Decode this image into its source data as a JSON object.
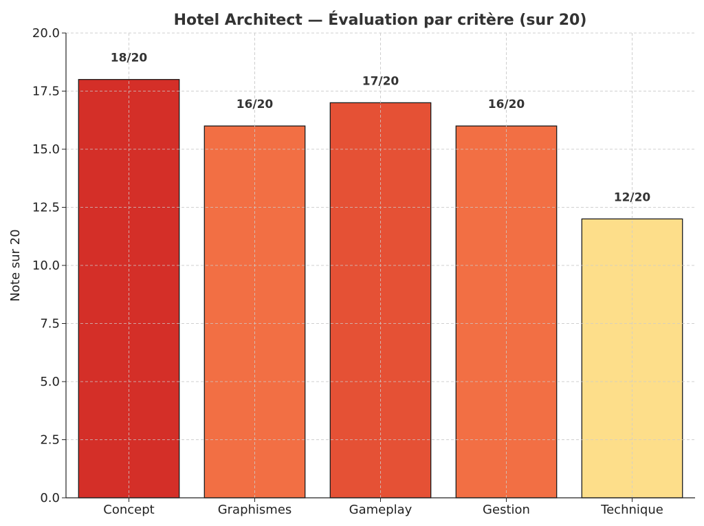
{
  "chart_data": {
    "type": "bar",
    "title": "Hotel Architect — Évaluation par critère (sur 20)",
    "xlabel": "",
    "ylabel": "Note sur 20",
    "categories": [
      "Concept",
      "Graphismes",
      "Gameplay",
      "Gestion",
      "Technique"
    ],
    "values": [
      18,
      16,
      17,
      16,
      12
    ],
    "data_labels": [
      "18/20",
      "16/20",
      "17/20",
      "16/20",
      "12/20"
    ],
    "colors": [
      "#d42f28",
      "#f26f44",
      "#e55135",
      "#f26f44",
      "#fdde8a"
    ],
    "ylim": [
      0,
      20
    ],
    "yticks": [
      0,
      2.5,
      5,
      7.5,
      10,
      12.5,
      15,
      17.5,
      20
    ],
    "ytick_labels": [
      "0.0",
      "2.5",
      "5.0",
      "7.5",
      "10.0",
      "12.5",
      "15.0",
      "17.5",
      "20.0"
    ],
    "grid": true
  }
}
